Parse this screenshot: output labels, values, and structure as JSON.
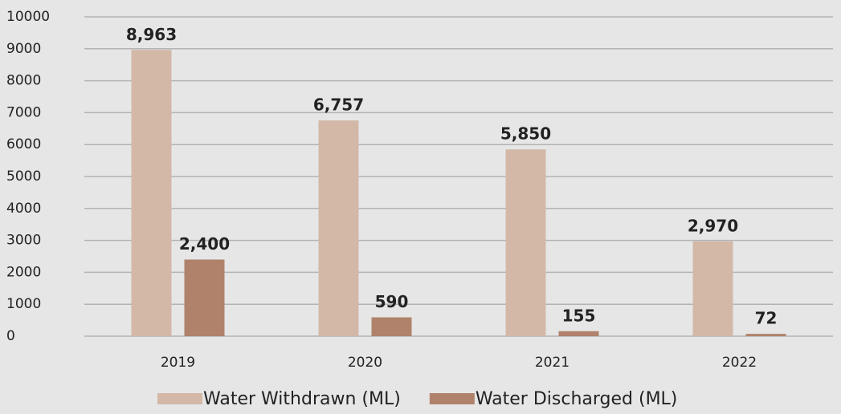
{
  "chart_data": {
    "type": "bar",
    "categories": [
      "2019",
      "2020",
      "2021",
      "2022"
    ],
    "series": [
      {
        "name": "Water Withdrawn (ML)",
        "color": "#d3b8a8",
        "values": [
          8963,
          6757,
          5850,
          2970
        ],
        "value_labels": [
          "8,963",
          "6,757",
          "5,850",
          "2,970"
        ]
      },
      {
        "name": "Water Discharged (ML)",
        "color": "#b0826b",
        "values": [
          2400,
          590,
          155,
          72
        ],
        "value_labels": [
          "2,400",
          "590",
          "155",
          "72"
        ]
      }
    ],
    "ylim": [
      0,
      10000
    ],
    "yticks": [
      0,
      1000,
      2000,
      3000,
      4000,
      5000,
      6000,
      7000,
      8000,
      9000,
      10000
    ],
    "grid": true,
    "legend": "bottom"
  }
}
